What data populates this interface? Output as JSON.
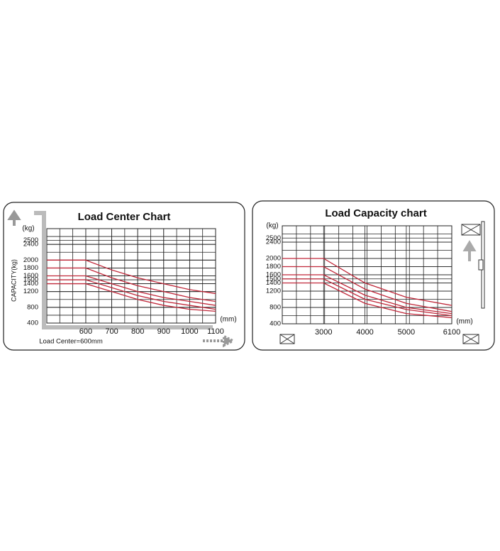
{
  "chart_data": [
    {
      "type": "line",
      "title": "Load Center Chart",
      "y_unit": "(kg)",
      "y_label": "CAPACITY(kg)",
      "x_label": "(mm)",
      "note": "Load Center=600mm",
      "x": [
        450,
        600,
        700,
        800,
        900,
        1000,
        1100
      ],
      "series": [
        {
          "color": "#c0283a",
          "values": [
            2000,
            2000,
            1750,
            1550,
            1400,
            1250,
            1150
          ]
        },
        {
          "color": "#c0283a",
          "values": [
            1800,
            1800,
            1550,
            1350,
            1200,
            1050,
            950
          ]
        },
        {
          "color": "#c0283a",
          "values": [
            1600,
            1600,
            1400,
            1200,
            1050,
            950,
            850
          ]
        },
        {
          "color": "#c0283a",
          "values": [
            1500,
            1500,
            1300,
            1100,
            950,
            850,
            750
          ]
        },
        {
          "color": "#c0283a",
          "values": [
            1400,
            1400,
            1200,
            1000,
            850,
            750,
            700
          ]
        }
      ],
      "xlim": [
        450,
        1100
      ],
      "xticks": [
        600,
        700,
        800,
        900,
        1000,
        1100
      ],
      "ylim": [
        400,
        2800
      ],
      "yticks": [
        400,
        800,
        1200,
        1400,
        1500,
        1600,
        1800,
        2000,
        2400,
        2500
      ],
      "grid": true
    },
    {
      "type": "line",
      "title": "Load Capacity chart",
      "y_unit": "(kg)",
      "x_label": "(mm)",
      "x": [
        2000,
        3000,
        4000,
        5000,
        6100
      ],
      "series": [
        {
          "color": "#c0283a",
          "values": [
            2000,
            2000,
            1400,
            1050,
            850
          ]
        },
        {
          "color": "#c0283a",
          "values": [
            1800,
            1800,
            1250,
            900,
            700
          ]
        },
        {
          "color": "#c0283a",
          "values": [
            1600,
            1600,
            1100,
            800,
            650
          ]
        },
        {
          "color": "#c0283a",
          "values": [
            1500,
            1500,
            1000,
            750,
            600
          ]
        },
        {
          "color": "#c0283a",
          "values": [
            1400,
            1400,
            900,
            650,
            550
          ]
        }
      ],
      "xlim": [
        2000,
        6100
      ],
      "xticks": [
        3000,
        4000,
        5000,
        6100
      ],
      "ylim": [
        400,
        2800
      ],
      "yticks": [
        400,
        800,
        1200,
        1400,
        1500,
        1600,
        1800,
        2000,
        2400,
        2500
      ],
      "grid": true
    }
  ]
}
